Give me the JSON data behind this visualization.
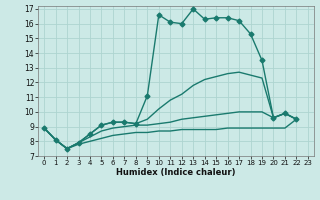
{
  "xlabel": "Humidex (Indice chaleur)",
  "background_color": "#cce9e6",
  "grid_color": "#aed4d0",
  "line_color": "#1a7a6e",
  "xlim": [
    -0.5,
    23.5
  ],
  "ylim": [
    7,
    17.2
  ],
  "xticks": [
    0,
    1,
    2,
    3,
    4,
    5,
    6,
    7,
    8,
    9,
    10,
    11,
    12,
    13,
    14,
    15,
    16,
    17,
    18,
    19,
    20,
    21,
    22,
    23
  ],
  "yticks": [
    7,
    8,
    9,
    10,
    11,
    12,
    13,
    14,
    15,
    16,
    17
  ],
  "series": [
    {
      "x": [
        0,
        1,
        2,
        3,
        4,
        5,
        6,
        7,
        8,
        9,
        10,
        11,
        12,
        13,
        14,
        15,
        16,
        17,
        18,
        19,
        20,
        21,
        22
      ],
      "y": [
        8.9,
        8.1,
        7.5,
        7.9,
        8.5,
        9.1,
        9.3,
        9.3,
        9.2,
        11.1,
        16.6,
        16.1,
        16.0,
        17.0,
        16.3,
        16.4,
        16.4,
        16.2,
        15.3,
        13.5,
        9.6,
        9.9,
        9.5
      ],
      "marker": "D",
      "markersize": 2.5,
      "linewidth": 1.0
    },
    {
      "x": [
        0,
        1,
        2,
        3,
        4,
        5,
        6,
        7,
        8,
        9,
        10,
        11,
        12,
        13,
        14,
        15,
        16,
        17,
        18,
        19,
        20,
        21,
        22
      ],
      "y": [
        8.9,
        8.1,
        7.5,
        7.9,
        8.5,
        9.1,
        9.3,
        9.3,
        9.2,
        9.5,
        10.2,
        10.8,
        11.2,
        11.8,
        12.2,
        12.4,
        12.6,
        12.7,
        12.5,
        12.3,
        9.6,
        9.9,
        9.5
      ],
      "marker": null,
      "markersize": 0,
      "linewidth": 1.0
    },
    {
      "x": [
        0,
        1,
        2,
        3,
        4,
        5,
        6,
        7,
        8,
        9,
        10,
        11,
        12,
        13,
        14,
        15,
        16,
        17,
        18,
        19,
        20,
        21,
        22
      ],
      "y": [
        8.9,
        8.1,
        7.5,
        7.9,
        8.3,
        8.7,
        8.9,
        9.0,
        9.1,
        9.1,
        9.2,
        9.3,
        9.5,
        9.6,
        9.7,
        9.8,
        9.9,
        10.0,
        10.0,
        10.0,
        9.6,
        9.9,
        9.5
      ],
      "marker": null,
      "markersize": 0,
      "linewidth": 1.0
    },
    {
      "x": [
        0,
        1,
        2,
        3,
        4,
        5,
        6,
        7,
        8,
        9,
        10,
        11,
        12,
        13,
        14,
        15,
        16,
        17,
        18,
        19,
        20,
        21,
        22
      ],
      "y": [
        8.9,
        8.1,
        7.5,
        7.8,
        8.0,
        8.2,
        8.4,
        8.5,
        8.6,
        8.6,
        8.7,
        8.7,
        8.8,
        8.8,
        8.8,
        8.8,
        8.9,
        8.9,
        8.9,
        8.9,
        8.9,
        8.9,
        9.5
      ],
      "marker": null,
      "markersize": 0,
      "linewidth": 1.0
    }
  ]
}
